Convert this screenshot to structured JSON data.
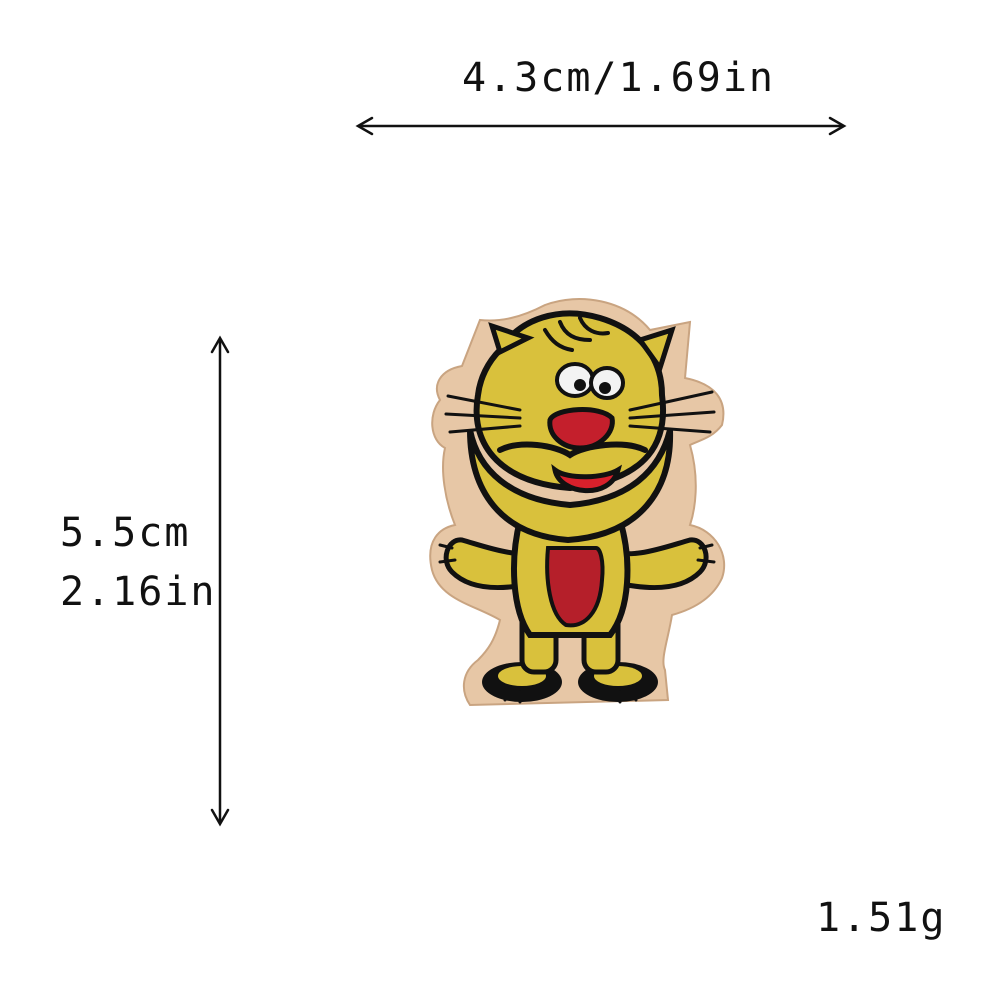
{
  "dimensions": {
    "width_label": "4.3cm/1.69in",
    "height_label_cm": "5.5cm",
    "height_label_in": "2.16in",
    "weight_label": "1.51g"
  },
  "product": {
    "icon": "cartoon-lion-embroidered-patch-icon"
  },
  "colors": {
    "background": "#ffffff",
    "text": "#111111",
    "patch_backing": "#e7c7a6",
    "patch_yellow": "#d9c13c",
    "patch_red": "#b51f2a",
    "patch_black": "#111111"
  }
}
